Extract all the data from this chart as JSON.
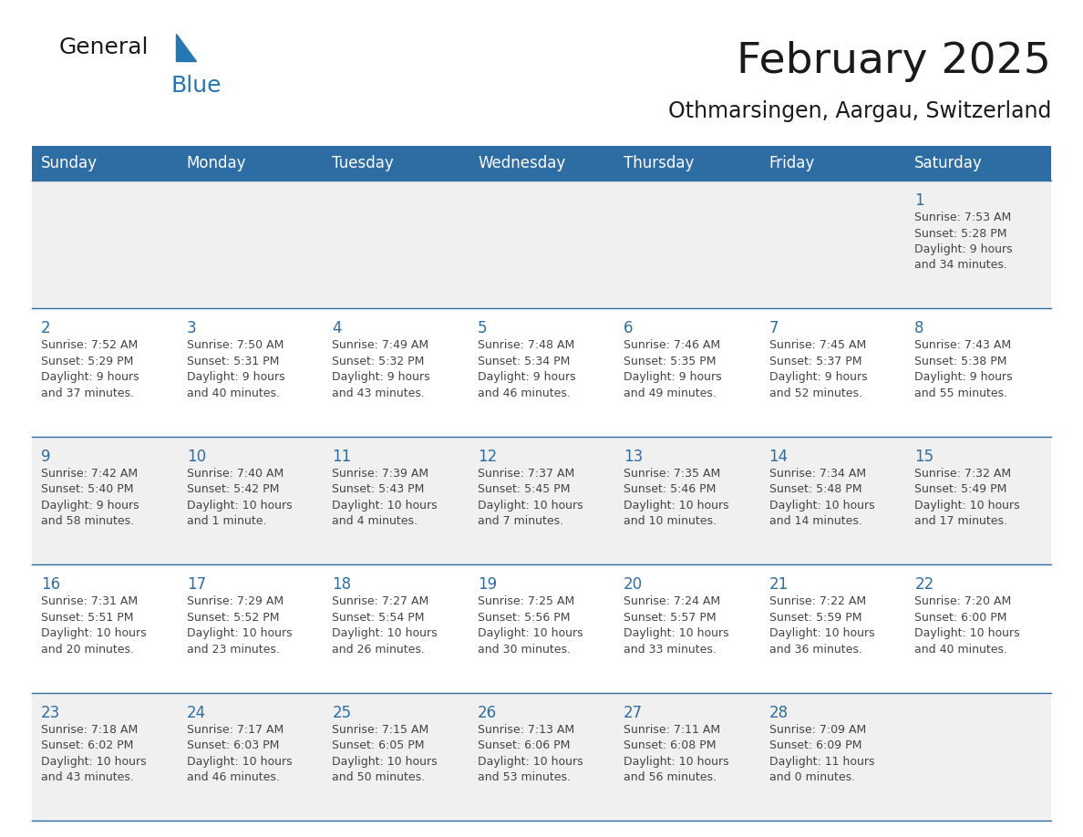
{
  "title": "February 2025",
  "subtitle": "Othmarsingen, Aargau, Switzerland",
  "header_bg": "#2E6DA4",
  "header_text": "#FFFFFF",
  "cell_bg_odd": "#F0F0F0",
  "cell_bg_even": "#FFFFFF",
  "day_number_color": "#2E6DA4",
  "cell_text_color": "#444444",
  "row_border_color": "#2E6DA4",
  "days_of_week": [
    "Sunday",
    "Monday",
    "Tuesday",
    "Wednesday",
    "Thursday",
    "Friday",
    "Saturday"
  ],
  "weeks": [
    [
      {
        "day": "",
        "info": ""
      },
      {
        "day": "",
        "info": ""
      },
      {
        "day": "",
        "info": ""
      },
      {
        "day": "",
        "info": ""
      },
      {
        "day": "",
        "info": ""
      },
      {
        "day": "",
        "info": ""
      },
      {
        "day": "1",
        "info": "Sunrise: 7:53 AM\nSunset: 5:28 PM\nDaylight: 9 hours\nand 34 minutes."
      }
    ],
    [
      {
        "day": "2",
        "info": "Sunrise: 7:52 AM\nSunset: 5:29 PM\nDaylight: 9 hours\nand 37 minutes."
      },
      {
        "day": "3",
        "info": "Sunrise: 7:50 AM\nSunset: 5:31 PM\nDaylight: 9 hours\nand 40 minutes."
      },
      {
        "day": "4",
        "info": "Sunrise: 7:49 AM\nSunset: 5:32 PM\nDaylight: 9 hours\nand 43 minutes."
      },
      {
        "day": "5",
        "info": "Sunrise: 7:48 AM\nSunset: 5:34 PM\nDaylight: 9 hours\nand 46 minutes."
      },
      {
        "day": "6",
        "info": "Sunrise: 7:46 AM\nSunset: 5:35 PM\nDaylight: 9 hours\nand 49 minutes."
      },
      {
        "day": "7",
        "info": "Sunrise: 7:45 AM\nSunset: 5:37 PM\nDaylight: 9 hours\nand 52 minutes."
      },
      {
        "day": "8",
        "info": "Sunrise: 7:43 AM\nSunset: 5:38 PM\nDaylight: 9 hours\nand 55 minutes."
      }
    ],
    [
      {
        "day": "9",
        "info": "Sunrise: 7:42 AM\nSunset: 5:40 PM\nDaylight: 9 hours\nand 58 minutes."
      },
      {
        "day": "10",
        "info": "Sunrise: 7:40 AM\nSunset: 5:42 PM\nDaylight: 10 hours\nand 1 minute."
      },
      {
        "day": "11",
        "info": "Sunrise: 7:39 AM\nSunset: 5:43 PM\nDaylight: 10 hours\nand 4 minutes."
      },
      {
        "day": "12",
        "info": "Sunrise: 7:37 AM\nSunset: 5:45 PM\nDaylight: 10 hours\nand 7 minutes."
      },
      {
        "day": "13",
        "info": "Sunrise: 7:35 AM\nSunset: 5:46 PM\nDaylight: 10 hours\nand 10 minutes."
      },
      {
        "day": "14",
        "info": "Sunrise: 7:34 AM\nSunset: 5:48 PM\nDaylight: 10 hours\nand 14 minutes."
      },
      {
        "day": "15",
        "info": "Sunrise: 7:32 AM\nSunset: 5:49 PM\nDaylight: 10 hours\nand 17 minutes."
      }
    ],
    [
      {
        "day": "16",
        "info": "Sunrise: 7:31 AM\nSunset: 5:51 PM\nDaylight: 10 hours\nand 20 minutes."
      },
      {
        "day": "17",
        "info": "Sunrise: 7:29 AM\nSunset: 5:52 PM\nDaylight: 10 hours\nand 23 minutes."
      },
      {
        "day": "18",
        "info": "Sunrise: 7:27 AM\nSunset: 5:54 PM\nDaylight: 10 hours\nand 26 minutes."
      },
      {
        "day": "19",
        "info": "Sunrise: 7:25 AM\nSunset: 5:56 PM\nDaylight: 10 hours\nand 30 minutes."
      },
      {
        "day": "20",
        "info": "Sunrise: 7:24 AM\nSunset: 5:57 PM\nDaylight: 10 hours\nand 33 minutes."
      },
      {
        "day": "21",
        "info": "Sunrise: 7:22 AM\nSunset: 5:59 PM\nDaylight: 10 hours\nand 36 minutes."
      },
      {
        "day": "22",
        "info": "Sunrise: 7:20 AM\nSunset: 6:00 PM\nDaylight: 10 hours\nand 40 minutes."
      }
    ],
    [
      {
        "day": "23",
        "info": "Sunrise: 7:18 AM\nSunset: 6:02 PM\nDaylight: 10 hours\nand 43 minutes."
      },
      {
        "day": "24",
        "info": "Sunrise: 7:17 AM\nSunset: 6:03 PM\nDaylight: 10 hours\nand 46 minutes."
      },
      {
        "day": "25",
        "info": "Sunrise: 7:15 AM\nSunset: 6:05 PM\nDaylight: 10 hours\nand 50 minutes."
      },
      {
        "day": "26",
        "info": "Sunrise: 7:13 AM\nSunset: 6:06 PM\nDaylight: 10 hours\nand 53 minutes."
      },
      {
        "day": "27",
        "info": "Sunrise: 7:11 AM\nSunset: 6:08 PM\nDaylight: 10 hours\nand 56 minutes."
      },
      {
        "day": "28",
        "info": "Sunrise: 7:09 AM\nSunset: 6:09 PM\nDaylight: 11 hours\nand 0 minutes."
      },
      {
        "day": "",
        "info": ""
      }
    ]
  ],
  "logo_general_color": "#1a1a1a",
  "logo_blue_color": "#2477B3",
  "title_fontsize": 34,
  "subtitle_fontsize": 17,
  "header_fontsize": 12,
  "day_number_fontsize": 12,
  "cell_text_fontsize": 9
}
